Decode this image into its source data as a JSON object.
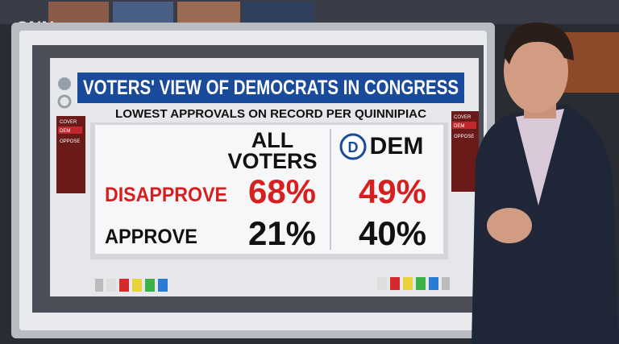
{
  "logo": "CNN",
  "header": {
    "title": "VOTERS' VIEW OF DEMOCRATS IN CONGRESS",
    "subtitle": "LOWEST APPROVALS ON RECORD PER QUINNIPIAC"
  },
  "side_tabs": [
    "COVER",
    "DEM",
    "OPPOSE"
  ],
  "table": {
    "columns": [
      "ALL VOTERS",
      "DEM"
    ],
    "rows": [
      [
        "DISAPPROVE",
        "68%",
        "49%"
      ],
      [
        "APPROVE",
        "21%",
        "40%"
      ]
    ]
  }
}
